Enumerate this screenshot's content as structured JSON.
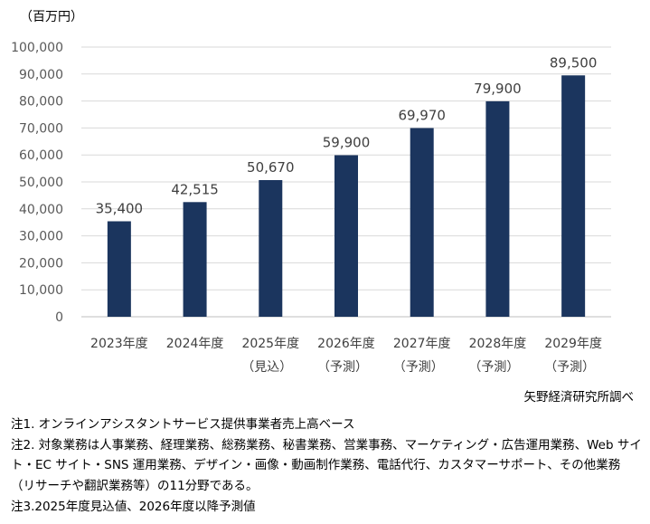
{
  "chart_data": {
    "type": "bar",
    "unit_label": "（百万円）",
    "categories": [
      "2023年度",
      "2024年度",
      "2025年度",
      "2026年度",
      "2027年度",
      "2028年度",
      "2029年度"
    ],
    "category_sublabels": [
      "",
      "",
      "（見込）",
      "（予測）",
      "（予測）",
      "（予測）",
      "（予測）"
    ],
    "values": [
      35400,
      42515,
      50670,
      59900,
      69970,
      79900,
      89500
    ],
    "data_labels": [
      "35,400",
      "42,515",
      "50,670",
      "59,900",
      "69,970",
      "79,900",
      "89,500"
    ],
    "ylim": [
      0,
      100000
    ],
    "yticks": [
      "0",
      "10,000",
      "20,000",
      "30,000",
      "40,000",
      "50,000",
      "60,000",
      "70,000",
      "80,000",
      "90,000",
      "100,000"
    ],
    "grid": true,
    "bar_color": "#1b355e"
  },
  "source": "矢野経済研究所調べ",
  "notes": [
    "注1. オンラインアシスタントサービス提供事業者売上高ベース",
    "注2. 対象業務は人事業務、経理業務、総務業務、秘書業務、営業事務、マーケティング・広告運用業務、Web サイト・EC サイト・SNS 運用業務、デザイン・画像・動画制作業務、電話代行、カスタマーサポート、その他業務（リサーチや翻訳業務等）の11分野である。",
    "注3.2025年度見込値、2026年度以降予測値"
  ]
}
